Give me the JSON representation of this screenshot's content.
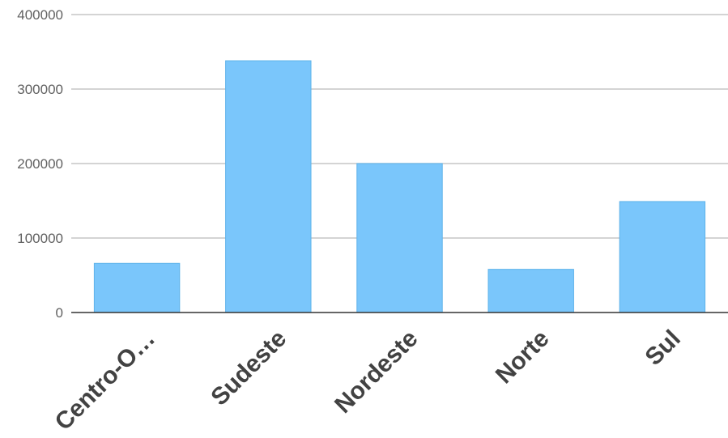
{
  "chart_data": {
    "type": "bar",
    "title": "",
    "xlabel": "",
    "ylabel": "",
    "categories": [
      "Centro-O…",
      "Sudeste",
      "Nordeste",
      "Norte",
      "Sul"
    ],
    "values": [
      66000,
      338000,
      200000,
      58000,
      149000
    ],
    "ylim": [
      0,
      400000
    ],
    "yticks": [
      0,
      100000,
      200000,
      300000,
      400000
    ],
    "ytick_labels": [
      "0",
      "100000",
      "200000",
      "300000",
      "400000"
    ],
    "grid": true,
    "legend": "none",
    "bar_color": "#7ac6fb",
    "bar_stroke_color": "#5fb3ea"
  }
}
